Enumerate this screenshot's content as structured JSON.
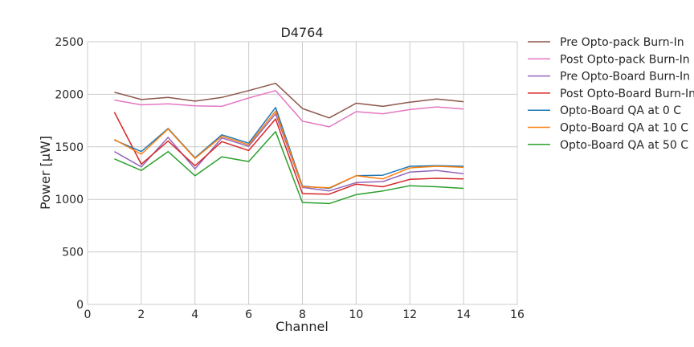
{
  "chart_data": {
    "type": "line",
    "title": "D4764",
    "xlabel": "Channel",
    "ylabel": "Power [μW]",
    "xlim": [
      0,
      16
    ],
    "ylim": [
      0,
      2500
    ],
    "xticks": [
      "0",
      "2",
      "4",
      "6",
      "8",
      "10",
      "12",
      "14",
      "16"
    ],
    "yticks": [
      "0",
      "500",
      "1000",
      "1500",
      "2000",
      "2500"
    ],
    "grid": true,
    "legend_position": "right",
    "x": [
      1,
      2,
      3,
      4,
      5,
      6,
      7,
      8,
      9,
      10,
      11,
      12,
      13,
      14
    ],
    "series": [
      {
        "name": "Pre Opto-pack Burn-In",
        "color": "#8c564b",
        "values": [
          2020,
          1950,
          1970,
          1935,
          1970,
          2035,
          2105,
          1865,
          1775,
          1915,
          1885,
          1925,
          1955,
          1930
        ]
      },
      {
        "name": "Post Opto-pack Burn-In",
        "color": "#e377c2",
        "values": [
          1945,
          1900,
          1910,
          1890,
          1885,
          1965,
          2035,
          1745,
          1690,
          1835,
          1815,
          1855,
          1880,
          1860
        ]
      },
      {
        "name": "Pre Opto-Board Burn-In",
        "color": "#9467bd",
        "values": [
          1455,
          1310,
          1590,
          1290,
          1585,
          1505,
          1815,
          1115,
          1080,
          1160,
          1170,
          1260,
          1275,
          1245
        ]
      },
      {
        "name": "Post Opto-Board Burn-In",
        "color": "#d62728",
        "values": [
          1830,
          1335,
          1555,
          1320,
          1550,
          1465,
          1765,
          1055,
          1050,
          1145,
          1120,
          1190,
          1200,
          1195
        ]
      },
      {
        "name": "Opto-Board QA at 0 C",
        "color": "#1f77b4",
        "values": [
          1565,
          1455,
          1675,
          1395,
          1615,
          1535,
          1875,
          1125,
          1105,
          1225,
          1230,
          1315,
          1320,
          1315
        ]
      },
      {
        "name": "Opto-Board QA at 10 C",
        "color": "#ff7f0e",
        "values": [
          1570,
          1430,
          1670,
          1390,
          1600,
          1520,
          1840,
          1120,
          1110,
          1225,
          1195,
          1300,
          1315,
          1305
        ]
      },
      {
        "name": "Opto-Board QA at 50 C",
        "color": "#2ca02c",
        "values": [
          1385,
          1275,
          1455,
          1225,
          1405,
          1360,
          1645,
          970,
          960,
          1045,
          1080,
          1130,
          1120,
          1105
        ]
      }
    ]
  }
}
